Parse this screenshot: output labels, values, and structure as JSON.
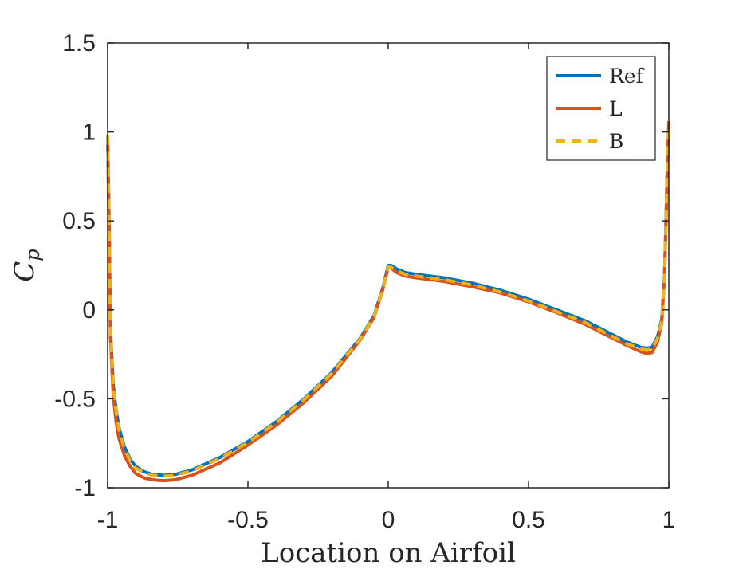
{
  "chart_data": {
    "type": "line",
    "title": "",
    "xlabel": "Location on Airfoil",
    "ylabel": "C",
    "ylabel_subscript": "p",
    "xlim": [
      -1,
      1
    ],
    "ylim": [
      -1,
      1.5
    ],
    "xticks": [
      -1,
      -0.5,
      0,
      0.5,
      1
    ],
    "xtick_labels": [
      "-1",
      "-0.5",
      "0",
      "0.5",
      "1"
    ],
    "yticks": [
      -1,
      -0.5,
      0,
      0.5,
      1,
      1.5
    ],
    "ytick_labels": [
      "-1",
      "-0.5",
      "0",
      "0.5",
      "1",
      "1.5"
    ],
    "grid": false,
    "legend_position": "top-right",
    "series": [
      {
        "name": "Ref",
        "color": "#0072BD",
        "style": "solid",
        "x": [
          -1,
          -0.995,
          -0.99,
          -0.98,
          -0.97,
          -0.96,
          -0.94,
          -0.92,
          -0.9,
          -0.87,
          -0.84,
          -0.8,
          -0.76,
          -0.7,
          -0.6,
          -0.5,
          -0.4,
          -0.3,
          -0.2,
          -0.1,
          -0.05,
          -0.02,
          0,
          0.01,
          0.03,
          0.06,
          0.1,
          0.2,
          0.3,
          0.4,
          0.5,
          0.6,
          0.7,
          0.8,
          0.85,
          0.9,
          0.92,
          0.94,
          0.96,
          0.975,
          0.985,
          0.99,
          0.995,
          1
        ],
        "y": [
          0.98,
          0.5,
          -0.1,
          -0.42,
          -0.56,
          -0.66,
          -0.77,
          -0.84,
          -0.88,
          -0.91,
          -0.925,
          -0.93,
          -0.925,
          -0.9,
          -0.83,
          -0.74,
          -0.63,
          -0.5,
          -0.35,
          -0.16,
          -0.03,
          0.12,
          0.25,
          0.25,
          0.23,
          0.21,
          0.2,
          0.18,
          0.15,
          0.11,
          0.06,
          0.0,
          -0.06,
          -0.14,
          -0.18,
          -0.21,
          -0.215,
          -0.21,
          -0.15,
          -0.05,
          0.2,
          0.5,
          0.8,
          1.02
        ]
      },
      {
        "name": "L",
        "color": "#D95319",
        "style": "solid",
        "x": [
          -1,
          -0.995,
          -0.99,
          -0.98,
          -0.97,
          -0.96,
          -0.94,
          -0.92,
          -0.9,
          -0.87,
          -0.84,
          -0.8,
          -0.76,
          -0.7,
          -0.6,
          -0.5,
          -0.4,
          -0.3,
          -0.2,
          -0.1,
          -0.05,
          -0.02,
          0,
          0.01,
          0.03,
          0.06,
          0.1,
          0.2,
          0.3,
          0.4,
          0.5,
          0.6,
          0.7,
          0.8,
          0.85,
          0.9,
          0.92,
          0.94,
          0.96,
          0.975,
          0.985,
          0.99,
          0.995,
          1
        ],
        "y": [
          0.98,
          0.45,
          -0.15,
          -0.48,
          -0.63,
          -0.72,
          -0.82,
          -0.88,
          -0.92,
          -0.945,
          -0.955,
          -0.96,
          -0.955,
          -0.93,
          -0.86,
          -0.76,
          -0.65,
          -0.52,
          -0.37,
          -0.17,
          -0.04,
          0.11,
          0.24,
          0.235,
          0.21,
          0.19,
          0.18,
          0.16,
          0.13,
          0.095,
          0.045,
          -0.015,
          -0.08,
          -0.16,
          -0.2,
          -0.235,
          -0.245,
          -0.24,
          -0.18,
          -0.07,
          0.2,
          0.52,
          0.82,
          1.06
        ]
      },
      {
        "name": "B",
        "color": "#EDB120",
        "style": "dashed",
        "x": [
          -1,
          -0.995,
          -0.99,
          -0.98,
          -0.97,
          -0.96,
          -0.94,
          -0.92,
          -0.9,
          -0.87,
          -0.84,
          -0.8,
          -0.76,
          -0.7,
          -0.6,
          -0.5,
          -0.4,
          -0.3,
          -0.2,
          -0.1,
          -0.05,
          -0.02,
          0,
          0.01,
          0.03,
          0.06,
          0.1,
          0.2,
          0.3,
          0.4,
          0.5,
          0.6,
          0.7,
          0.8,
          0.85,
          0.9,
          0.92,
          0.94,
          0.96,
          0.975,
          0.985,
          0.99,
          0.995,
          1
        ],
        "y": [
          0.98,
          0.5,
          -0.1,
          -0.43,
          -0.57,
          -0.67,
          -0.78,
          -0.85,
          -0.89,
          -0.915,
          -0.93,
          -0.935,
          -0.93,
          -0.905,
          -0.835,
          -0.745,
          -0.635,
          -0.505,
          -0.355,
          -0.165,
          -0.035,
          0.115,
          0.24,
          0.24,
          0.22,
          0.2,
          0.19,
          0.17,
          0.14,
          0.1,
          0.05,
          -0.01,
          -0.07,
          -0.15,
          -0.19,
          -0.22,
          -0.225,
          -0.22,
          -0.16,
          -0.06,
          0.2,
          0.5,
          0.8,
          1.04
        ]
      }
    ]
  }
}
